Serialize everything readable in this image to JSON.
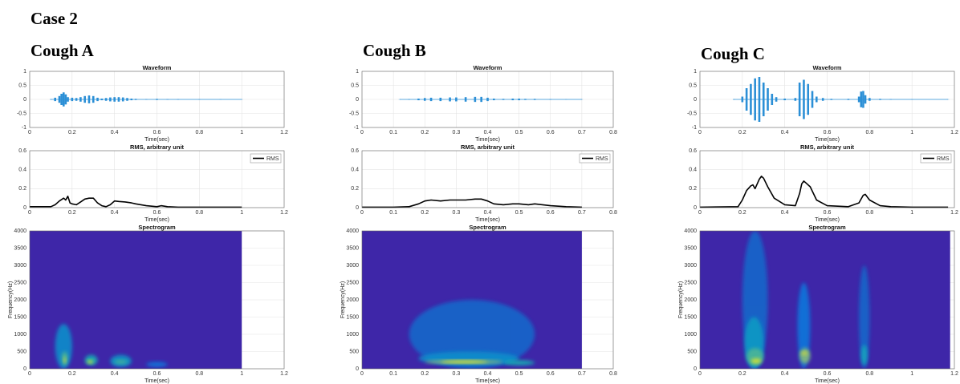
{
  "heading": "Case 2",
  "columns": [
    "Cough A",
    "Cough B",
    "Cough C"
  ],
  "chart_data": [
    {
      "type": "waveform",
      "title": "Waveform",
      "xlabel": "Time(sec)",
      "color": "#2b8fd6",
      "grid": true,
      "xlim": [
        0,
        1.2
      ],
      "xticks": [
        0,
        0.2,
        0.4,
        0.6,
        0.8,
        1,
        1.2
      ],
      "ylim": [
        -1,
        1
      ],
      "yticks": [
        -1,
        -0.5,
        0,
        0.5,
        1
      ],
      "x": [
        0.1,
        0.12,
        0.14,
        0.15,
        0.16,
        0.17,
        0.18,
        0.2,
        0.22,
        0.24,
        0.26,
        0.28,
        0.3,
        0.32,
        0.34,
        0.36,
        0.38,
        0.4,
        0.42,
        0.44,
        0.46,
        0.48,
        0.5,
        0.55,
        0.6,
        0.65,
        0.7,
        0.8,
        0.9,
        1.0
      ],
      "values": [
        0.01,
        0.06,
        0.12,
        0.2,
        0.25,
        0.18,
        0.08,
        0.06,
        0.05,
        0.08,
        0.12,
        0.14,
        0.12,
        0.06,
        0.03,
        0.05,
        0.07,
        0.08,
        0.08,
        0.07,
        0.05,
        0.03,
        0.02,
        0.01,
        0.02,
        0.01,
        0.01,
        0.005,
        0.005,
        0.005
      ]
    },
    {
      "type": "line",
      "title": "RMS, arbitrary unit",
      "xlabel": "Time(sec)",
      "grid": true,
      "legend": "upper right",
      "xlim": [
        0,
        1.2
      ],
      "xticks": [
        0,
        0.2,
        0.4,
        0.6,
        0.8,
        1,
        1.2
      ],
      "ylim": [
        0,
        0.6
      ],
      "yticks": [
        0,
        0.2,
        0.4,
        0.6
      ],
      "series": [
        {
          "name": "RMS",
          "color": "#000000",
          "x": [
            0,
            0.1,
            0.12,
            0.14,
            0.16,
            0.17,
            0.18,
            0.19,
            0.2,
            0.22,
            0.24,
            0.26,
            0.28,
            0.3,
            0.32,
            0.34,
            0.36,
            0.38,
            0.4,
            0.42,
            0.45,
            0.48,
            0.5,
            0.55,
            0.6,
            0.62,
            0.65,
            0.7,
            0.8,
            0.9,
            1.0
          ],
          "values": [
            0.01,
            0.01,
            0.03,
            0.07,
            0.1,
            0.08,
            0.12,
            0.05,
            0.04,
            0.03,
            0.06,
            0.09,
            0.1,
            0.1,
            0.05,
            0.02,
            0.01,
            0.03,
            0.07,
            0.065,
            0.06,
            0.05,
            0.04,
            0.02,
            0.01,
            0.02,
            0.01,
            0.005,
            0.005,
            0.005,
            0.005
          ]
        }
      ]
    },
    {
      "type": "heatmap",
      "title": "Spectrogram",
      "xlabel": "Time(sec)",
      "ylabel": "Frequency(Hz)",
      "grid": true,
      "color": "#3e26a8",
      "xlim": [
        0,
        1.2
      ],
      "xticks": [
        0,
        0.2,
        0.4,
        0.6,
        0.8,
        1,
        1.2
      ],
      "ylim": [
        0,
        4000
      ],
      "yticks": [
        0,
        500,
        1000,
        1500,
        2000,
        2500,
        3000,
        3500,
        4000
      ],
      "extent": [
        0,
        1.0
      ],
      "spots": [
        {
          "t0": 0.12,
          "t1": 0.2,
          "f0": 0,
          "f1": 1300,
          "level": 0.35
        },
        {
          "t0": 0.15,
          "t1": 0.18,
          "f0": 100,
          "f1": 500,
          "level": 0.6
        },
        {
          "t0": 0.16,
          "t1": 0.17,
          "f0": 150,
          "f1": 350,
          "level": 0.85
        },
        {
          "t0": 0.26,
          "t1": 0.32,
          "f0": 100,
          "f1": 400,
          "level": 0.5
        },
        {
          "t0": 0.27,
          "t1": 0.3,
          "f0": 150,
          "f1": 250,
          "level": 0.9
        },
        {
          "t0": 0.38,
          "t1": 0.48,
          "f0": 50,
          "f1": 400,
          "level": 0.4
        },
        {
          "t0": 0.4,
          "t1": 0.46,
          "f0": 150,
          "f1": 250,
          "level": 0.6
        },
        {
          "t0": 0.55,
          "t1": 0.65,
          "f0": 50,
          "f1": 200,
          "level": 0.25
        }
      ]
    },
    {
      "type": "waveform",
      "title": "Waveform",
      "xlabel": "Time(sec)",
      "color": "#2b8fd6",
      "grid": true,
      "xlim": [
        0,
        0.8
      ],
      "xticks": [
        0,
        0.1,
        0.2,
        0.3,
        0.4,
        0.5,
        0.6,
        0.7,
        0.8
      ],
      "ylim": [
        -1,
        1
      ],
      "yticks": [
        -1,
        -0.5,
        0,
        0.5,
        1
      ],
      "x": [
        0.12,
        0.15,
        0.18,
        0.2,
        0.22,
        0.25,
        0.28,
        0.3,
        0.33,
        0.36,
        0.38,
        0.4,
        0.42,
        0.45,
        0.48,
        0.5,
        0.52,
        0.55,
        0.6,
        0.65,
        0.7
      ],
      "values": [
        0.005,
        0.01,
        0.03,
        0.05,
        0.06,
        0.06,
        0.07,
        0.07,
        0.08,
        0.09,
        0.09,
        0.06,
        0.03,
        0.02,
        0.03,
        0.03,
        0.02,
        0.02,
        0.01,
        0.005,
        0.005
      ]
    },
    {
      "type": "line",
      "title": "RMS, arbitrary unit",
      "xlabel": "Time(sec)",
      "grid": true,
      "legend": "upper right",
      "xlim": [
        0,
        0.8
      ],
      "xticks": [
        0,
        0.1,
        0.2,
        0.3,
        0.4,
        0.5,
        0.6,
        0.7,
        0.8
      ],
      "ylim": [
        0,
        0.6
      ],
      "yticks": [
        0,
        0.2,
        0.4,
        0.6
      ],
      "series": [
        {
          "name": "RMS",
          "color": "#000000",
          "x": [
            0,
            0.1,
            0.15,
            0.18,
            0.2,
            0.22,
            0.25,
            0.28,
            0.3,
            0.33,
            0.36,
            0.38,
            0.4,
            0.42,
            0.45,
            0.48,
            0.5,
            0.53,
            0.55,
            0.6,
            0.65,
            0.7
          ],
          "values": [
            0.005,
            0.005,
            0.01,
            0.04,
            0.07,
            0.08,
            0.07,
            0.08,
            0.08,
            0.08,
            0.09,
            0.09,
            0.07,
            0.04,
            0.03,
            0.04,
            0.04,
            0.03,
            0.04,
            0.02,
            0.01,
            0.005
          ]
        }
      ]
    },
    {
      "type": "heatmap",
      "title": "Spectrogram",
      "xlabel": "Time(sec)",
      "ylabel": "Frequency(Hz)",
      "grid": true,
      "color": "#3e26a8",
      "xlim": [
        0,
        0.8
      ],
      "xticks": [
        0,
        0.1,
        0.2,
        0.3,
        0.4,
        0.5,
        0.6,
        0.7,
        0.8
      ],
      "ylim": [
        0,
        4000
      ],
      "yticks": [
        0,
        500,
        1000,
        1500,
        2000,
        2500,
        3000,
        3500,
        4000
      ],
      "extent": [
        0,
        0.7
      ],
      "spots": [
        {
          "t0": 0.15,
          "t1": 0.55,
          "f0": 0,
          "f1": 2000,
          "level": 0.2
        },
        {
          "t0": 0.18,
          "t1": 0.5,
          "f0": 100,
          "f1": 500,
          "level": 0.35
        },
        {
          "t0": 0.2,
          "t1": 0.45,
          "f0": 150,
          "f1": 250,
          "level": 0.75
        },
        {
          "t0": 0.25,
          "t1": 0.4,
          "f0": 170,
          "f1": 230,
          "level": 0.95
        },
        {
          "t0": 0.45,
          "t1": 0.55,
          "f0": 100,
          "f1": 250,
          "level": 0.5
        }
      ]
    },
    {
      "type": "waveform",
      "title": "Waveform",
      "xlabel": "Time(sec)",
      "color": "#2b8fd6",
      "grid": true,
      "xlim": [
        0,
        1.2
      ],
      "xticks": [
        0,
        0.2,
        0.4,
        0.6,
        0.8,
        1,
        1.2
      ],
      "ylim": [
        -1,
        1
      ],
      "yticks": [
        -1,
        -0.5,
        0,
        0.5,
        1
      ],
      "x": [
        0.16,
        0.2,
        0.22,
        0.24,
        0.26,
        0.28,
        0.3,
        0.32,
        0.34,
        0.36,
        0.4,
        0.45,
        0.47,
        0.49,
        0.51,
        0.53,
        0.55,
        0.58,
        0.62,
        0.7,
        0.75,
        0.76,
        0.77,
        0.78,
        0.8,
        0.85,
        0.9,
        1.0,
        1.17
      ],
      "values": [
        0.01,
        0.1,
        0.4,
        0.55,
        0.75,
        0.8,
        0.6,
        0.4,
        0.2,
        0.08,
        0.03,
        0.05,
        0.6,
        0.7,
        0.55,
        0.3,
        0.1,
        0.05,
        0.02,
        0.02,
        0.1,
        0.28,
        0.3,
        0.15,
        0.05,
        0.02,
        0.01,
        0.005,
        0.005
      ]
    },
    {
      "type": "line",
      "title": "RMS, arbitrary unit",
      "xlabel": "Time(sec)",
      "grid": true,
      "legend": "upper right",
      "xlim": [
        0,
        1.2
      ],
      "xticks": [
        0,
        0.2,
        0.4,
        0.6,
        0.8,
        1,
        1.2
      ],
      "ylim": [
        0,
        0.6
      ],
      "yticks": [
        0,
        0.2,
        0.4,
        0.6
      ],
      "series": [
        {
          "name": "RMS",
          "color": "#000000",
          "x": [
            0,
            0.18,
            0.2,
            0.22,
            0.24,
            0.25,
            0.26,
            0.28,
            0.29,
            0.3,
            0.32,
            0.35,
            0.4,
            0.45,
            0.47,
            0.48,
            0.49,
            0.5,
            0.52,
            0.55,
            0.6,
            0.7,
            0.75,
            0.77,
            0.78,
            0.8,
            0.85,
            0.9,
            1.0,
            1.17
          ],
          "values": [
            0.005,
            0.01,
            0.08,
            0.18,
            0.23,
            0.24,
            0.2,
            0.3,
            0.33,
            0.31,
            0.22,
            0.1,
            0.03,
            0.02,
            0.15,
            0.25,
            0.28,
            0.26,
            0.22,
            0.08,
            0.02,
            0.01,
            0.05,
            0.13,
            0.14,
            0.08,
            0.02,
            0.01,
            0.005,
            0.005
          ]
        }
      ]
    },
    {
      "type": "heatmap",
      "title": "Spectrogram",
      "xlabel": "Time(sec)",
      "ylabel": "Frequency(Hz)",
      "grid": true,
      "color": "#3e26a8",
      "xlim": [
        0,
        1.2
      ],
      "xticks": [
        0,
        0.2,
        0.4,
        0.6,
        0.8,
        1,
        1.2
      ],
      "ylim": [
        0,
        4000
      ],
      "yticks": [
        0,
        500,
        1000,
        1500,
        2000,
        2500,
        3000,
        3500,
        4000
      ],
      "extent": [
        0,
        1.18
      ],
      "spots": [
        {
          "t0": 0.2,
          "t1": 0.32,
          "f0": 0,
          "f1": 4000,
          "level": 0.2
        },
        {
          "t0": 0.21,
          "t1": 0.3,
          "f0": 0,
          "f1": 1500,
          "level": 0.4
        },
        {
          "t0": 0.22,
          "t1": 0.3,
          "f0": 100,
          "f1": 600,
          "level": 0.6
        },
        {
          "t0": 0.24,
          "t1": 0.29,
          "f0": 150,
          "f1": 300,
          "level": 0.9
        },
        {
          "t0": 0.46,
          "t1": 0.52,
          "f0": 0,
          "f1": 2500,
          "level": 0.25
        },
        {
          "t0": 0.47,
          "t1": 0.52,
          "f0": 150,
          "f1": 600,
          "level": 0.7
        },
        {
          "t0": 0.475,
          "t1": 0.51,
          "f0": 400,
          "f1": 500,
          "level": 0.85
        },
        {
          "t0": 0.75,
          "t1": 0.8,
          "f0": 0,
          "f1": 3000,
          "level": 0.2
        },
        {
          "t0": 0.76,
          "t1": 0.79,
          "f0": 100,
          "f1": 700,
          "level": 0.45
        }
      ]
    }
  ]
}
